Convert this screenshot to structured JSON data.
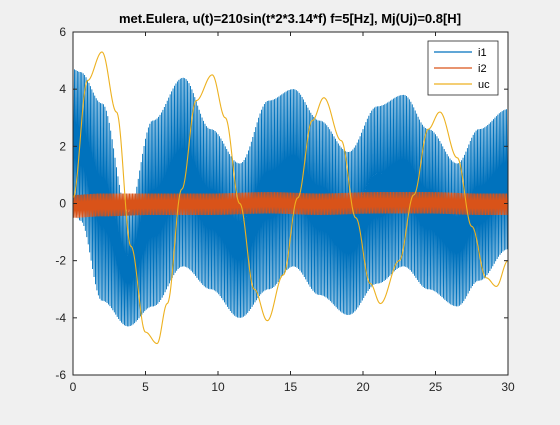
{
  "chart_data": {
    "type": "line",
    "title": "met.Eulera, u(t)=210sin(t*2*3.14*f) f=5[Hz], Mj(Uj)=0.8[H]",
    "xlabel": "",
    "ylabel": "",
    "xlim": [
      0,
      30
    ],
    "ylim": [
      -6,
      6
    ],
    "x_ticks": [
      "0",
      "5",
      "10",
      "15",
      "20",
      "25",
      "30"
    ],
    "y_ticks": [
      "-6",
      "-4",
      "-2",
      "0",
      "2",
      "4",
      "6"
    ],
    "grid": false,
    "legend_position": "top-right",
    "series": [
      {
        "name": "i1",
        "color": "#0072BD",
        "style": "fast oscillation inside envelope",
        "envelope_max": [
          [
            0,
            4.7
          ],
          [
            0.5,
            4.6
          ],
          [
            2,
            3.5
          ],
          [
            3.8,
            -0.3
          ],
          [
            5.5,
            2.9
          ],
          [
            7.6,
            4.4
          ],
          [
            9.5,
            2.6
          ],
          [
            11.5,
            1.4
          ],
          [
            13.5,
            3.6
          ],
          [
            15.2,
            4.0
          ],
          [
            17,
            2.9
          ],
          [
            19,
            1.8
          ],
          [
            21,
            3.4
          ],
          [
            22.8,
            3.8
          ],
          [
            24.5,
            2.6
          ],
          [
            26.5,
            1.4
          ],
          [
            28,
            2.6
          ],
          [
            30,
            3.3
          ]
        ],
        "envelope_min": [
          [
            0,
            -0.2
          ],
          [
            0.5,
            -0.6
          ],
          [
            2,
            -3.4
          ],
          [
            3.8,
            -4.3
          ],
          [
            5.5,
            -3.6
          ],
          [
            7.6,
            -2.2
          ],
          [
            9.5,
            -3.0
          ],
          [
            11.5,
            -4.0
          ],
          [
            13.5,
            -3.0
          ],
          [
            15.2,
            -2.2
          ],
          [
            17,
            -3.2
          ],
          [
            19,
            -3.9
          ],
          [
            21,
            -2.8
          ],
          [
            22.8,
            -2.2
          ],
          [
            24.5,
            -3.0
          ],
          [
            26.5,
            -3.6
          ],
          [
            28,
            -2.7
          ],
          [
            30,
            -1.6
          ]
        ]
      },
      {
        "name": "i2",
        "color": "#D95319",
        "style": "fast oscillation inside envelope",
        "envelope_max": [
          [
            0,
            0.3
          ],
          [
            2,
            0.35
          ],
          [
            5.5,
            0.35
          ],
          [
            9.5,
            0.35
          ],
          [
            13.5,
            0.4
          ],
          [
            17,
            0.35
          ],
          [
            21,
            0.4
          ],
          [
            24.5,
            0.4
          ],
          [
            28,
            0.35
          ],
          [
            30,
            0.35
          ]
        ],
        "envelope_min": [
          [
            0,
            -0.5
          ],
          [
            2,
            -0.45
          ],
          [
            5.5,
            -0.4
          ],
          [
            9.5,
            -0.4
          ],
          [
            13.5,
            -0.35
          ],
          [
            17,
            -0.4
          ],
          [
            21,
            -0.35
          ],
          [
            24.5,
            -0.35
          ],
          [
            28,
            -0.4
          ],
          [
            30,
            -0.4
          ]
        ]
      },
      {
        "name": "uc",
        "color": "#EDB120",
        "style": "slow wave",
        "points": [
          [
            0,
            0.2
          ],
          [
            1,
            4.3
          ],
          [
            2,
            5.3
          ],
          [
            3,
            3.2
          ],
          [
            4,
            -1.5
          ],
          [
            5,
            -4.5
          ],
          [
            5.8,
            -4.9
          ],
          [
            6.5,
            -3.5
          ],
          [
            7.5,
            0.5
          ],
          [
            8.5,
            3.6
          ],
          [
            9.6,
            4.5
          ],
          [
            10.5,
            3.0
          ],
          [
            11.5,
            0.0
          ],
          [
            12.5,
            -3.0
          ],
          [
            13.4,
            -4.1
          ],
          [
            14.5,
            -2.5
          ],
          [
            15.5,
            0.2
          ],
          [
            16.5,
            2.9
          ],
          [
            17.3,
            3.7
          ],
          [
            18.5,
            2.2
          ],
          [
            19.5,
            -0.5
          ],
          [
            20.5,
            -2.8
          ],
          [
            21.2,
            -3.5
          ],
          [
            22.5,
            -2.0
          ],
          [
            23.5,
            0.3
          ],
          [
            24.5,
            2.6
          ],
          [
            25.3,
            3.2
          ],
          [
            26.5,
            1.6
          ],
          [
            27.5,
            -0.8
          ],
          [
            28.5,
            -2.6
          ],
          [
            29.2,
            -2.9
          ],
          [
            30,
            -2.0
          ]
        ]
      }
    ]
  }
}
